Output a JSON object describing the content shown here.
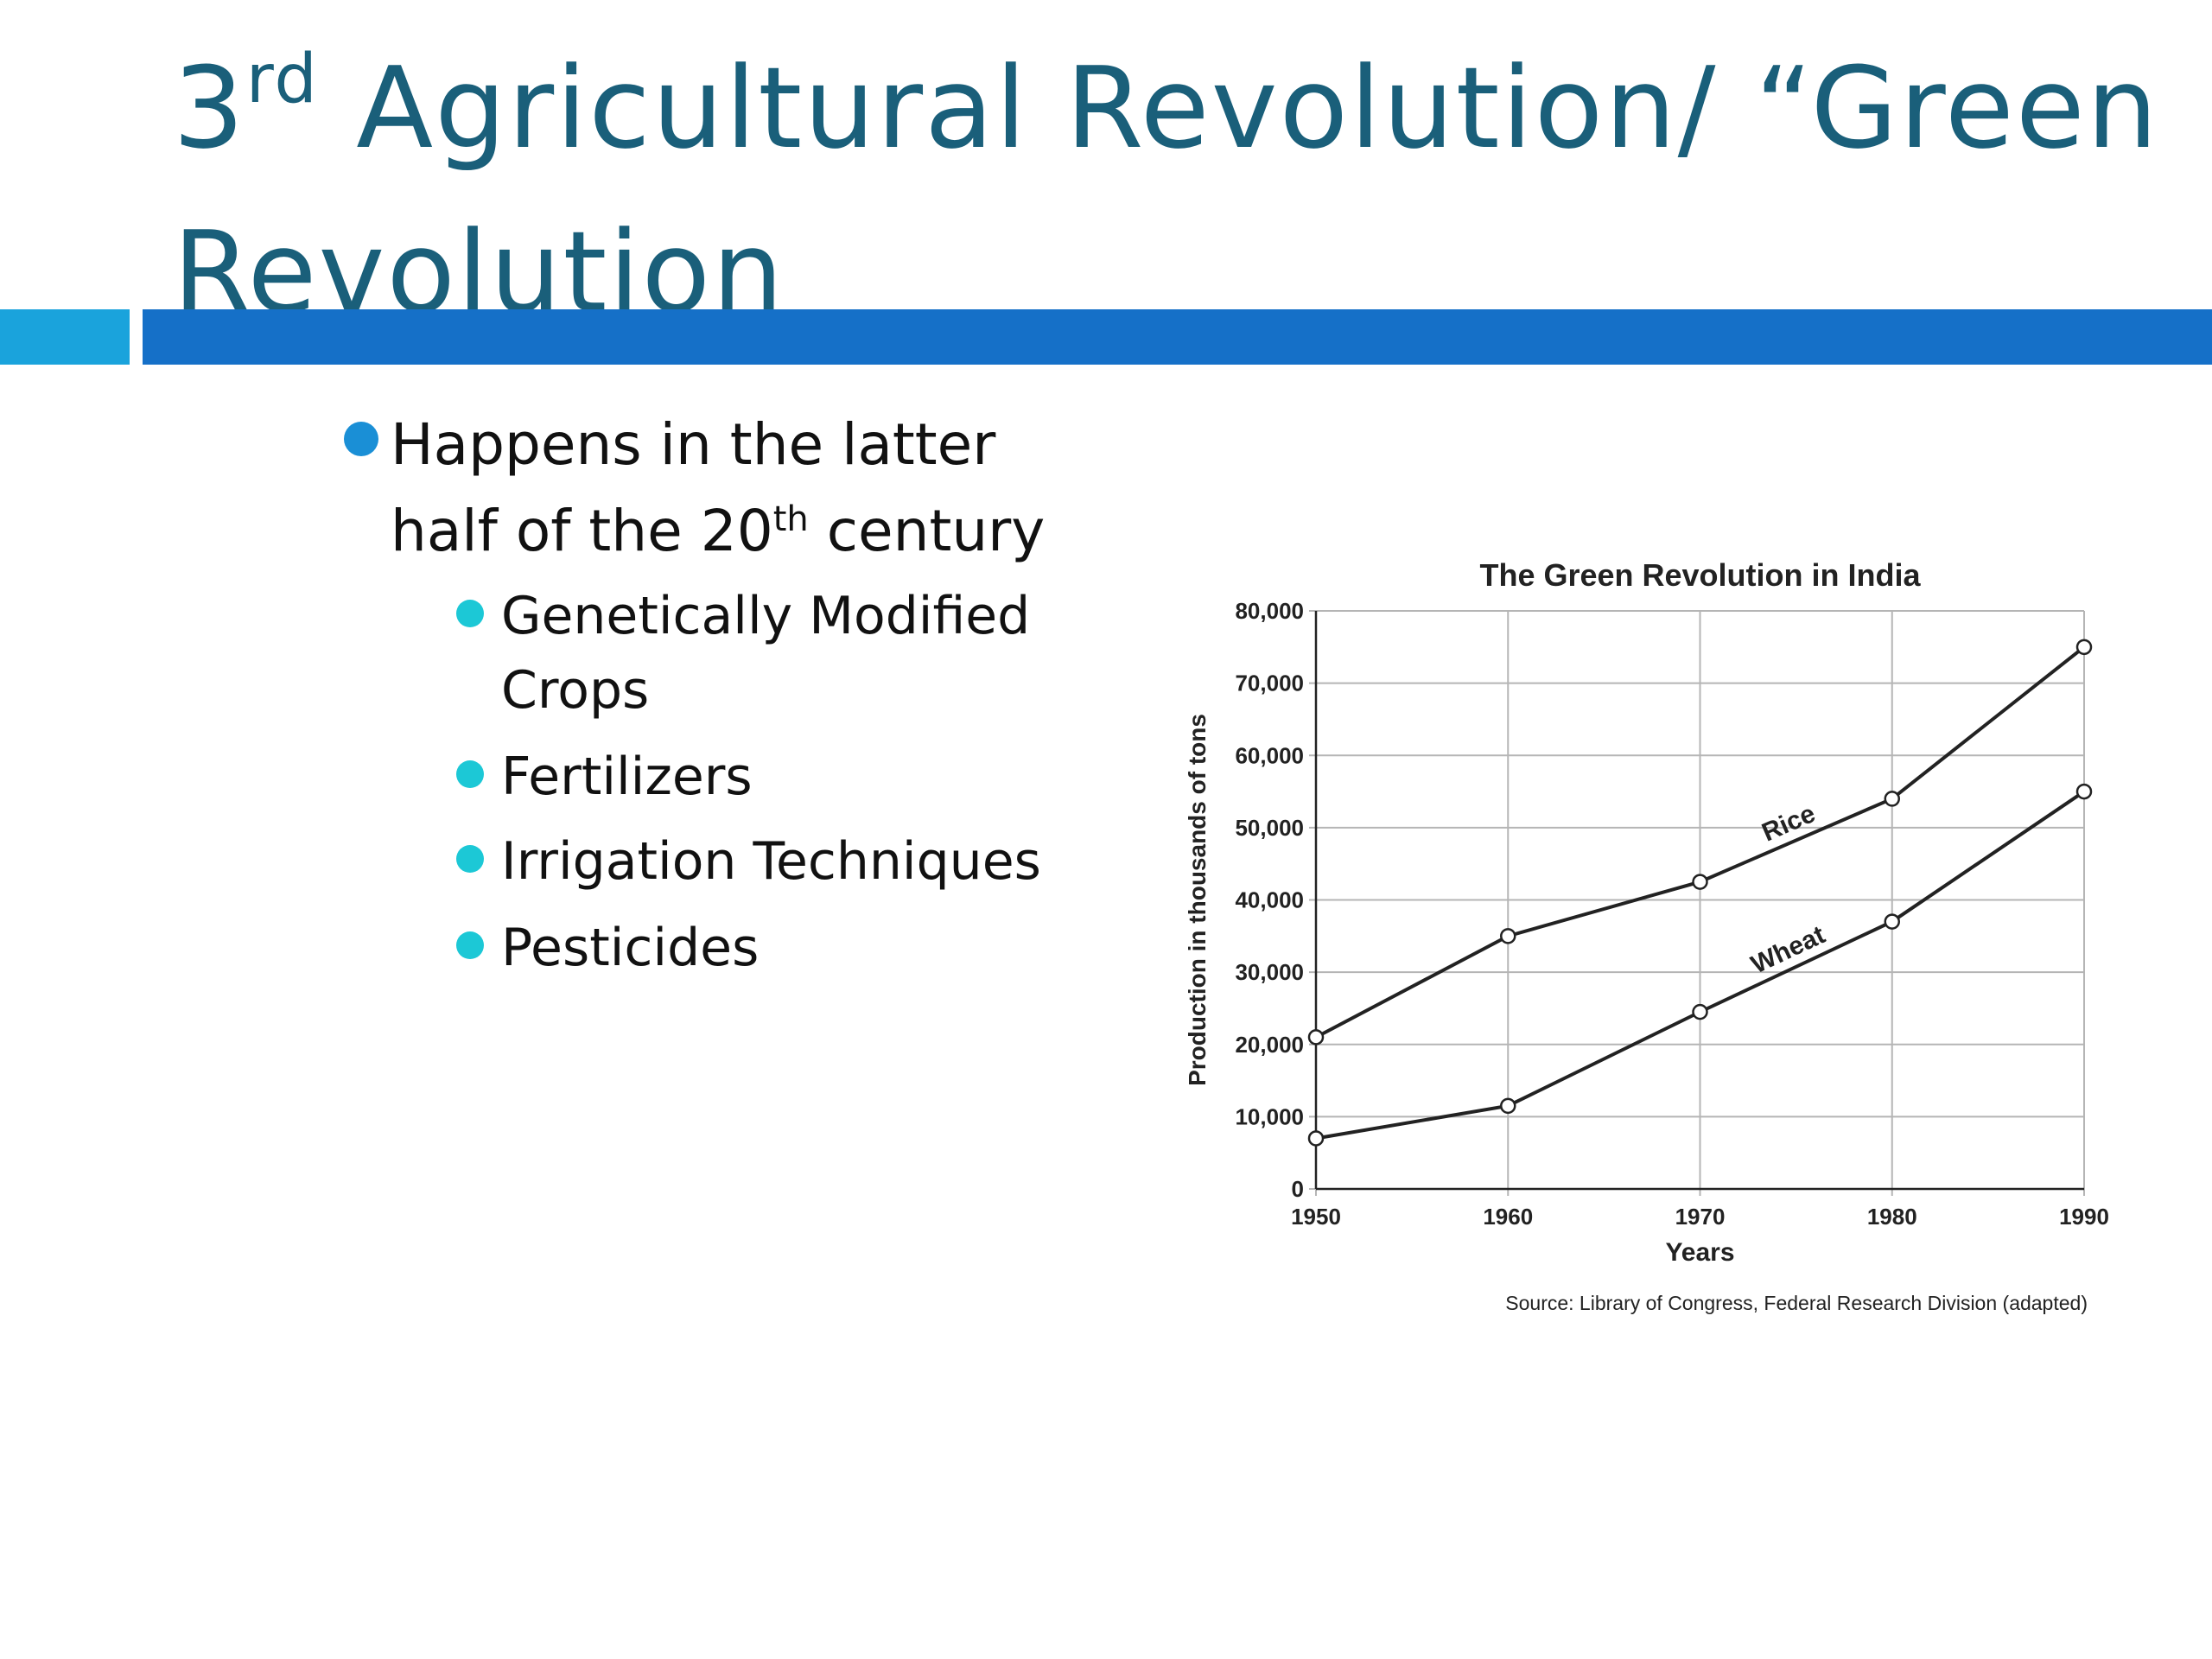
{
  "slide": {
    "title_prefix": "3",
    "title_sup": "rd",
    "title_rest": " Agricultural Revolution/ “Green Revolution",
    "bullet_main_a": "Happens in the latter half of the 20",
    "bullet_main_sup": "th",
    "bullet_main_b": " century",
    "sub_bullets": [
      "Genetically Modified Crops",
      "Fertilizers",
      "Irrigation Techniques",
      "Pesticides"
    ]
  },
  "colors": {
    "title": "#1a5f7a",
    "bar_left": "#1aa3dc",
    "bar_main": "#1570c8",
    "bullet_main": "#1a8fd6",
    "bullet_sub": "#1cc8d6"
  },
  "chart_data": {
    "type": "line",
    "title": "The Green Revolution in India",
    "xlabel": "Years",
    "ylabel": "Production in thousands of tons",
    "x": [
      1950,
      1960,
      1970,
      1980,
      1990
    ],
    "xlim": [
      1950,
      1990
    ],
    "ylim": [
      0,
      80000
    ],
    "x_ticks": [
      "1950",
      "1960",
      "1970",
      "1980",
      "1990"
    ],
    "y_ticks": [
      "0",
      "10,000",
      "20,000",
      "30,000",
      "40,000",
      "50,000",
      "60,000",
      "70,000",
      "80,000"
    ],
    "grid": true,
    "series": [
      {
        "name": "Rice",
        "values": [
          21000,
          35000,
          42500,
          54000,
          75000
        ]
      },
      {
        "name": "Wheat",
        "values": [
          7000,
          11500,
          24500,
          37000,
          55000
        ]
      }
    ],
    "source": "Source: Library of Congress, Federal Research Division (adapted)"
  }
}
